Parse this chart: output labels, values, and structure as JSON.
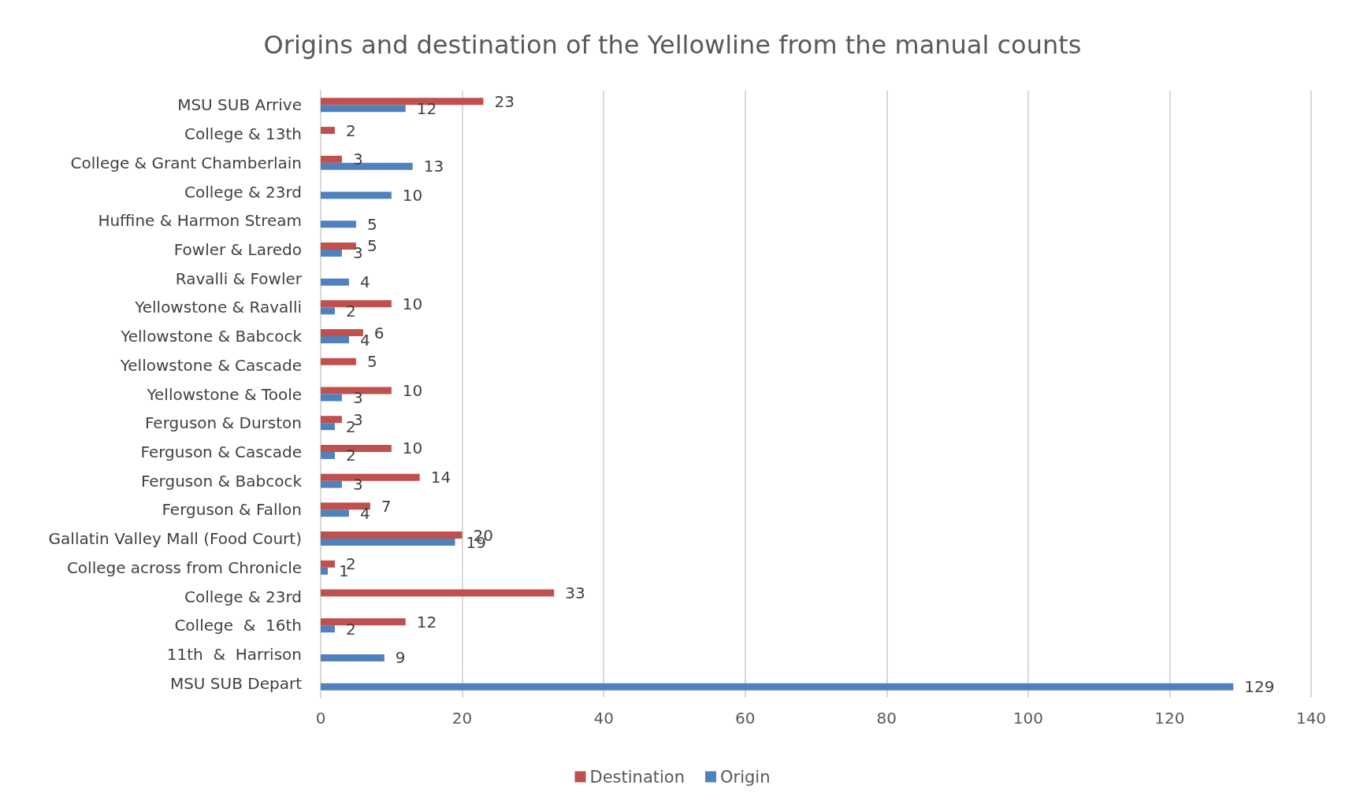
{
  "chart_data": {
    "type": "bar",
    "orientation": "horizontal",
    "title": "Origins and destination of the Yellowline from the manual counts",
    "categories": [
      "MSU SUB Arrive",
      "College & 13th",
      "College & Grant Chamberlain",
      "College & 23rd",
      "Huffine & Harmon Stream",
      "Fowler & Laredo",
      "Ravalli & Fowler",
      "Yellowstone & Ravalli",
      "Yellowstone & Babcock",
      "Yellowstone & Cascade",
      "Yellowstone & Toole",
      "Ferguson & Durston",
      "Ferguson & Cascade",
      "Ferguson & Babcock",
      "Ferguson & Fallon",
      "Gallatin Valley Mall (Food Court)",
      "College across from Chronicle",
      "College & 23rd",
      "College  &  16th",
      "11th  &  Harrison",
      "MSU SUB Depart"
    ],
    "series": [
      {
        "name": "Destination",
        "color": "#c0504d",
        "values": [
          23,
          2,
          3,
          null,
          null,
          5,
          null,
          10,
          6,
          5,
          10,
          3,
          10,
          14,
          7,
          20,
          2,
          33,
          12,
          null,
          null
        ]
      },
      {
        "name": "Origin",
        "color": "#4f81bd",
        "values": [
          12,
          null,
          13,
          10,
          5,
          3,
          4,
          2,
          4,
          null,
          3,
          2,
          2,
          3,
          4,
          19,
          1,
          null,
          2,
          9,
          129
        ]
      }
    ],
    "xlim": [
      0,
      140
    ],
    "xticks": [
      0,
      20,
      40,
      60,
      80,
      100,
      120,
      140
    ],
    "grid": "x",
    "legend": "bottom",
    "data_labels": true
  }
}
